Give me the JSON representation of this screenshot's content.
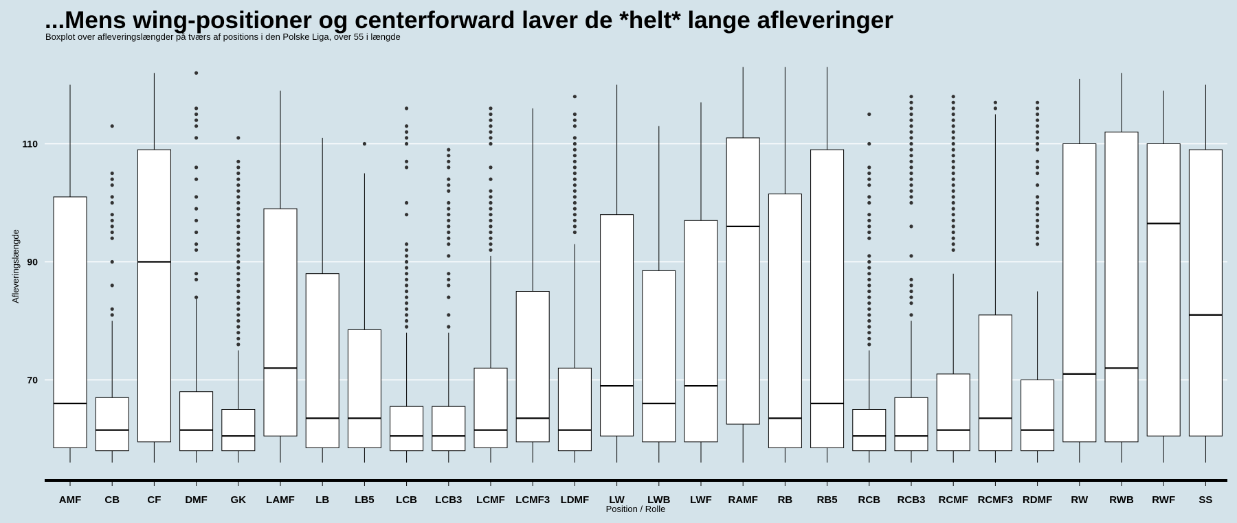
{
  "title": "...Mens wing-positioner og centerforward laver de *helt* lange afleveringer",
  "subtitle": "Boxplot over afleveringslængder på tværs af positions i den Polske Liga, over 55 i længde",
  "colors": {
    "background": "#d4e3ea",
    "box_fill": "#ffffff",
    "stroke": "#000000",
    "grid": "#ffffff"
  },
  "chart_data": {
    "type": "boxplot",
    "title": "...Mens wing-positioner og centerforward laver de *helt* lange afleveringer",
    "subtitle": "Boxplot over afleveringslængder på tværs af positions i den Polske Liga, over 55 i længde",
    "xlabel": "Position / Rolle",
    "ylabel": "Afleveringslængde",
    "ylim": [
      52,
      125
    ],
    "yticks": [
      70,
      90,
      110
    ],
    "grid": "horizontal",
    "categories": [
      "AMF",
      "CB",
      "CF",
      "DMF",
      "GK",
      "LAMF",
      "LB",
      "LB5",
      "LCB",
      "LCB3",
      "LCMF",
      "LCMF3",
      "LDMF",
      "LW",
      "LWB",
      "LWF",
      "RAMF",
      "RB",
      "RB5",
      "RCB",
      "RCB3",
      "RCMF",
      "RCMF3",
      "RDMF",
      "RW",
      "RWB",
      "RWF",
      "SS"
    ],
    "boxes": [
      {
        "min": 56,
        "q1": 58.5,
        "median": 66,
        "q3": 101,
        "max": 120,
        "outliers": []
      },
      {
        "min": 56,
        "q1": 58,
        "median": 61.5,
        "q3": 67,
        "max": 80,
        "outliers": [
          81,
          82,
          86,
          90,
          94,
          95,
          96,
          97,
          98,
          100,
          101,
          103,
          104,
          105,
          113
        ]
      },
      {
        "min": 56,
        "q1": 59.5,
        "median": 90,
        "q3": 109,
        "max": 122,
        "outliers": []
      },
      {
        "min": 56,
        "q1": 58,
        "median": 61.5,
        "q3": 68,
        "max": 84,
        "outliers": [
          84,
          87,
          88,
          92,
          93,
          95,
          97,
          99,
          101,
          104,
          106,
          111,
          113,
          114,
          115,
          116,
          122
        ]
      },
      {
        "min": 56,
        "q1": 58,
        "median": 60.5,
        "q3": 65,
        "max": 75,
        "outliers": [
          76,
          77,
          78,
          79,
          80,
          81,
          82,
          83,
          84,
          85,
          86,
          87,
          88,
          89,
          90,
          91,
          92,
          93,
          94,
          95,
          96,
          97,
          98,
          99,
          100,
          101,
          102,
          103,
          104,
          105,
          106,
          107,
          111
        ]
      },
      {
        "min": 56,
        "q1": 60.5,
        "median": 72,
        "q3": 99,
        "max": 119,
        "outliers": []
      },
      {
        "min": 56,
        "q1": 58.5,
        "median": 63.5,
        "q3": 88,
        "max": 111,
        "outliers": []
      },
      {
        "min": 56,
        "q1": 58.5,
        "median": 63.5,
        "q3": 78.5,
        "max": 105,
        "outliers": [
          110
        ]
      },
      {
        "min": 56,
        "q1": 58,
        "median": 60.5,
        "q3": 65.5,
        "max": 78,
        "outliers": [
          79,
          80,
          81,
          82,
          83,
          84,
          85,
          86,
          87,
          88,
          89,
          90,
          91,
          92,
          93,
          98,
          100,
          106,
          107,
          110,
          111,
          112,
          113,
          116
        ]
      },
      {
        "min": 56,
        "q1": 58,
        "median": 60.5,
        "q3": 65.5,
        "max": 78,
        "outliers": [
          79,
          81,
          84,
          86,
          87,
          88,
          91,
          93,
          94,
          95,
          96,
          97,
          98,
          99,
          100,
          102,
          103,
          104,
          106,
          107,
          108,
          109
        ]
      },
      {
        "min": 56,
        "q1": 58.5,
        "median": 61.5,
        "q3": 72,
        "max": 91,
        "outliers": [
          92,
          93,
          94,
          95,
          96,
          97,
          98,
          99,
          100,
          101,
          102,
          104,
          106,
          110,
          111,
          112,
          113,
          114,
          115,
          116
        ]
      },
      {
        "min": 56,
        "q1": 59.5,
        "median": 63.5,
        "q3": 85,
        "max": 116,
        "outliers": []
      },
      {
        "min": 56,
        "q1": 58,
        "median": 61.5,
        "q3": 72,
        "max": 93,
        "outliers": [
          95,
          96,
          97,
          98,
          99,
          100,
          101,
          102,
          103,
          104,
          105,
          106,
          107,
          108,
          109,
          110,
          111,
          113,
          114,
          115,
          118
        ]
      },
      {
        "min": 56,
        "q1": 60.5,
        "median": 69,
        "q3": 98,
        "max": 120,
        "outliers": []
      },
      {
        "min": 56,
        "q1": 59.5,
        "median": 66,
        "q3": 88.5,
        "max": 113,
        "outliers": []
      },
      {
        "min": 56,
        "q1": 59.5,
        "median": 69,
        "q3": 97,
        "max": 117,
        "outliers": []
      },
      {
        "min": 56,
        "q1": 62.5,
        "median": 96,
        "q3": 111,
        "max": 123,
        "outliers": []
      },
      {
        "min": 56,
        "q1": 58.5,
        "median": 63.5,
        "q3": 101.5,
        "max": 123,
        "outliers": []
      },
      {
        "min": 56,
        "q1": 58.5,
        "median": 66,
        "q3": 109,
        "max": 123,
        "outliers": []
      },
      {
        "min": 56,
        "q1": 58,
        "median": 60.5,
        "q3": 65,
        "max": 75,
        "outliers": [
          76,
          77,
          78,
          79,
          80,
          81,
          82,
          83,
          84,
          85,
          86,
          87,
          88,
          89,
          90,
          91,
          94,
          95,
          96,
          97,
          98,
          100,
          101,
          103,
          104,
          105,
          106,
          110,
          115
        ]
      },
      {
        "min": 56,
        "q1": 58,
        "median": 60.5,
        "q3": 67,
        "max": 80,
        "outliers": [
          81,
          83,
          84,
          85,
          86,
          87,
          91,
          96,
          100,
          101,
          102,
          103,
          104,
          105,
          106,
          107,
          108,
          109,
          110,
          111,
          112,
          113,
          114,
          115,
          116,
          117,
          118
        ]
      },
      {
        "min": 56,
        "q1": 58,
        "median": 61.5,
        "q3": 71,
        "max": 88,
        "outliers": [
          92,
          93,
          94,
          95,
          96,
          97,
          98,
          99,
          100,
          101,
          102,
          103,
          104,
          105,
          106,
          107,
          108,
          109,
          110,
          111,
          112,
          113,
          114,
          115,
          116,
          117,
          118
        ]
      },
      {
        "min": 56,
        "q1": 58,
        "median": 63.5,
        "q3": 81,
        "max": 115,
        "outliers": [
          116,
          117
        ]
      },
      {
        "min": 56,
        "q1": 58,
        "median": 61.5,
        "q3": 70,
        "max": 85,
        "outliers": [
          93,
          94,
          95,
          96,
          97,
          98,
          99,
          100,
          101,
          103,
          105,
          106,
          107,
          109,
          110,
          111,
          112,
          113,
          114,
          115,
          116,
          117
        ]
      },
      {
        "min": 56,
        "q1": 59.5,
        "median": 71,
        "q3": 110,
        "max": 121,
        "outliers": []
      },
      {
        "min": 56,
        "q1": 59.5,
        "median": 72,
        "q3": 112,
        "max": 122,
        "outliers": []
      },
      {
        "min": 56,
        "q1": 60.5,
        "median": 96.5,
        "q3": 110,
        "max": 119,
        "outliers": []
      },
      {
        "min": 56,
        "q1": 60.5,
        "median": 81,
        "q3": 109,
        "max": 120,
        "outliers": []
      }
    ]
  }
}
